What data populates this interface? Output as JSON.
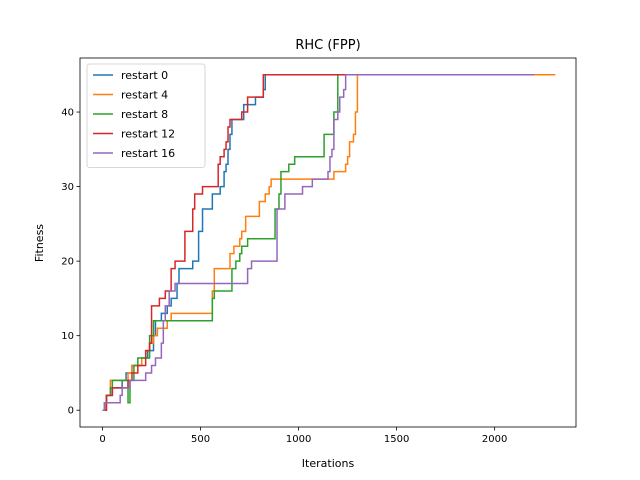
{
  "chart_data": {
    "type": "line",
    "title": "RHC (FPP)",
    "xlabel": "Iterations",
    "ylabel": "Fitness",
    "xlim": [
      -115,
      2415
    ],
    "ylim": [
      -2.25,
      47.25
    ],
    "xticks": [
      0,
      500,
      1000,
      1500,
      2000
    ],
    "yticks": [
      0,
      10,
      20,
      30,
      40
    ],
    "grid": false,
    "legend_position": "top-left",
    "series": [
      {
        "name": "restart 0",
        "color": "#1f77b4",
        "points": [
          [
            0,
            0
          ],
          [
            10,
            1
          ],
          [
            20,
            2
          ],
          [
            50,
            3
          ],
          [
            100,
            4
          ],
          [
            120,
            5
          ],
          [
            150,
            6
          ],
          [
            200,
            7
          ],
          [
            230,
            8
          ],
          [
            260,
            10
          ],
          [
            270,
            12
          ],
          [
            300,
            13
          ],
          [
            330,
            14
          ],
          [
            350,
            15
          ],
          [
            380,
            17
          ],
          [
            390,
            19
          ],
          [
            440,
            19
          ],
          [
            460,
            20
          ],
          [
            490,
            24
          ],
          [
            510,
            27
          ],
          [
            540,
            27
          ],
          [
            560,
            29
          ],
          [
            590,
            29
          ],
          [
            600,
            30
          ],
          [
            620,
            32
          ],
          [
            630,
            33
          ],
          [
            640,
            35
          ],
          [
            650,
            37
          ],
          [
            660,
            39
          ],
          [
            700,
            39
          ],
          [
            720,
            41
          ],
          [
            770,
            41
          ],
          [
            780,
            42
          ],
          [
            820,
            43
          ],
          [
            830,
            45
          ],
          [
            2250,
            45
          ]
        ]
      },
      {
        "name": "restart 4",
        "color": "#ff7f0e",
        "points": [
          [
            0,
            0
          ],
          [
            20,
            2
          ],
          [
            40,
            4
          ],
          [
            120,
            4
          ],
          [
            130,
            5
          ],
          [
            150,
            6
          ],
          [
            200,
            7
          ],
          [
            220,
            8
          ],
          [
            240,
            9
          ],
          [
            260,
            10
          ],
          [
            280,
            11
          ],
          [
            330,
            12
          ],
          [
            350,
            13
          ],
          [
            540,
            13
          ],
          [
            560,
            16
          ],
          [
            570,
            19
          ],
          [
            630,
            19
          ],
          [
            650,
            21
          ],
          [
            670,
            22
          ],
          [
            700,
            23
          ],
          [
            710,
            24
          ],
          [
            730,
            26
          ],
          [
            790,
            26
          ],
          [
            800,
            28
          ],
          [
            830,
            29
          ],
          [
            850,
            30
          ],
          [
            860,
            31
          ],
          [
            1170,
            31
          ],
          [
            1180,
            32
          ],
          [
            1230,
            32
          ],
          [
            1240,
            33
          ],
          [
            1250,
            34
          ],
          [
            1260,
            36
          ],
          [
            1280,
            37
          ],
          [
            1290,
            40
          ],
          [
            1300,
            45
          ],
          [
            2310,
            45
          ]
        ]
      },
      {
        "name": "restart 8",
        "color": "#2ca02c",
        "points": [
          [
            0,
            0
          ],
          [
            10,
            1
          ],
          [
            20,
            2
          ],
          [
            40,
            3
          ],
          [
            50,
            4
          ],
          [
            120,
            4
          ],
          [
            130,
            1
          ],
          [
            140,
            4
          ],
          [
            160,
            6
          ],
          [
            180,
            7
          ],
          [
            230,
            7
          ],
          [
            240,
            10
          ],
          [
            260,
            12
          ],
          [
            550,
            12
          ],
          [
            560,
            15
          ],
          [
            570,
            16
          ],
          [
            650,
            16
          ],
          [
            660,
            19
          ],
          [
            680,
            20
          ],
          [
            700,
            21
          ],
          [
            710,
            22
          ],
          [
            740,
            23
          ],
          [
            870,
            23
          ],
          [
            880,
            27
          ],
          [
            900,
            29
          ],
          [
            910,
            32
          ],
          [
            940,
            32
          ],
          [
            950,
            33
          ],
          [
            980,
            34
          ],
          [
            1000,
            34
          ],
          [
            1020,
            34
          ],
          [
            1120,
            34
          ],
          [
            1130,
            37
          ],
          [
            1170,
            37
          ],
          [
            1180,
            40
          ],
          [
            1200,
            45
          ],
          [
            2200,
            45
          ]
        ]
      },
      {
        "name": "restart 12",
        "color": "#d62728",
        "points": [
          [
            0,
            0
          ],
          [
            20,
            2
          ],
          [
            50,
            3
          ],
          [
            120,
            3
          ],
          [
            130,
            4
          ],
          [
            150,
            5
          ],
          [
            180,
            6
          ],
          [
            210,
            6
          ],
          [
            220,
            8
          ],
          [
            240,
            9
          ],
          [
            250,
            14
          ],
          [
            280,
            14
          ],
          [
            290,
            15
          ],
          [
            320,
            16
          ],
          [
            350,
            19
          ],
          [
            370,
            20
          ],
          [
            410,
            20
          ],
          [
            420,
            24
          ],
          [
            450,
            24
          ],
          [
            460,
            27
          ],
          [
            470,
            29
          ],
          [
            500,
            29
          ],
          [
            510,
            30
          ],
          [
            580,
            30
          ],
          [
            590,
            33
          ],
          [
            600,
            34
          ],
          [
            620,
            35
          ],
          [
            630,
            36
          ],
          [
            640,
            38
          ],
          [
            650,
            39
          ],
          [
            700,
            39
          ],
          [
            710,
            40
          ],
          [
            730,
            40
          ],
          [
            740,
            42
          ],
          [
            800,
            42
          ],
          [
            820,
            45
          ],
          [
            2200,
            45
          ]
        ]
      },
      {
        "name": "restart 16",
        "color": "#9467bd",
        "points": [
          [
            0,
            0
          ],
          [
            10,
            1
          ],
          [
            80,
            1
          ],
          [
            90,
            2
          ],
          [
            100,
            3
          ],
          [
            140,
            4
          ],
          [
            210,
            4
          ],
          [
            220,
            5
          ],
          [
            250,
            6
          ],
          [
            270,
            7
          ],
          [
            300,
            9
          ],
          [
            310,
            12
          ],
          [
            320,
            14
          ],
          [
            340,
            16
          ],
          [
            370,
            17
          ],
          [
            730,
            17
          ],
          [
            740,
            19
          ],
          [
            760,
            20
          ],
          [
            880,
            20
          ],
          [
            890,
            27
          ],
          [
            920,
            27
          ],
          [
            930,
            29
          ],
          [
            1000,
            29
          ],
          [
            1020,
            30
          ],
          [
            1060,
            30
          ],
          [
            1070,
            31
          ],
          [
            1140,
            31
          ],
          [
            1150,
            32
          ],
          [
            1160,
            34
          ],
          [
            1170,
            35
          ],
          [
            1180,
            39
          ],
          [
            1200,
            40
          ],
          [
            1210,
            42
          ],
          [
            1230,
            43
          ],
          [
            1240,
            45
          ],
          [
            2200,
            45
          ]
        ]
      }
    ]
  }
}
